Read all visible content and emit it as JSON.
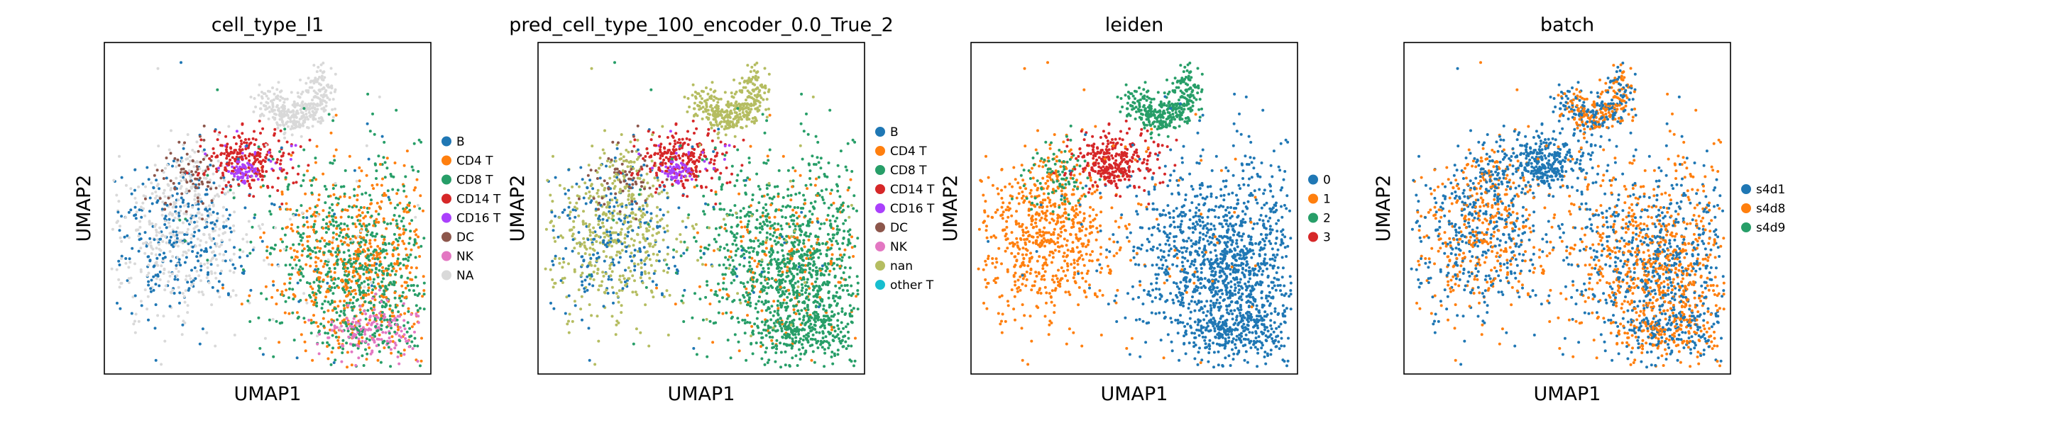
{
  "chart_data": [
    {
      "type": "scatter",
      "title": "cell_type_l1",
      "xlabel": "UMAP1",
      "ylabel": "UMAP2",
      "grid": false,
      "legend_placement": "right",
      "legend": [
        {
          "label": "B",
          "color": "#1f77b4"
        },
        {
          "label": "CD4 T",
          "color": "#ff7f0e"
        },
        {
          "label": "CD8 T",
          "color": "#279e68"
        },
        {
          "label": "CD14 T",
          "color": "#d62728"
        },
        {
          "label": "CD16 T",
          "color": "#aa40fc"
        },
        {
          "label": "DC",
          "color": "#8c564b"
        },
        {
          "label": "NK",
          "color": "#e377c2"
        },
        {
          "label": "NA",
          "color": "#d9d9d9"
        }
      ]
    },
    {
      "type": "scatter",
      "title": "pred_cell_type_100_encoder_0.0_True_2",
      "xlabel": "UMAP1",
      "ylabel": "UMAP2",
      "grid": false,
      "legend_placement": "right",
      "legend": [
        {
          "label": "B",
          "color": "#1f77b4"
        },
        {
          "label": "CD4 T",
          "color": "#ff7f0e"
        },
        {
          "label": "CD8 T",
          "color": "#279e68"
        },
        {
          "label": "CD14 T",
          "color": "#d62728"
        },
        {
          "label": "CD16 T",
          "color": "#aa40fc"
        },
        {
          "label": "DC",
          "color": "#8c564b"
        },
        {
          "label": "NK",
          "color": "#e377c2"
        },
        {
          "label": "nan",
          "color": "#b5bd61"
        },
        {
          "label": "other T",
          "color": "#17becf"
        }
      ]
    },
    {
      "type": "scatter",
      "title": "leiden",
      "xlabel": "UMAP1",
      "ylabel": "UMAP2",
      "grid": false,
      "legend_placement": "right",
      "legend": [
        {
          "label": "0",
          "color": "#1f77b4"
        },
        {
          "label": "1",
          "color": "#ff7f0e"
        },
        {
          "label": "2",
          "color": "#279e68"
        },
        {
          "label": "3",
          "color": "#d62728"
        }
      ]
    },
    {
      "type": "scatter",
      "title": "batch",
      "xlabel": "UMAP1",
      "ylabel": "UMAP2",
      "grid": false,
      "legend_placement": "right",
      "legend": [
        {
          "label": "s4d1",
          "color": "#1f77b4"
        },
        {
          "label": "s4d8",
          "color": "#ff7f0e"
        },
        {
          "label": "s4d9",
          "color": "#279e68"
        }
      ]
    }
  ]
}
